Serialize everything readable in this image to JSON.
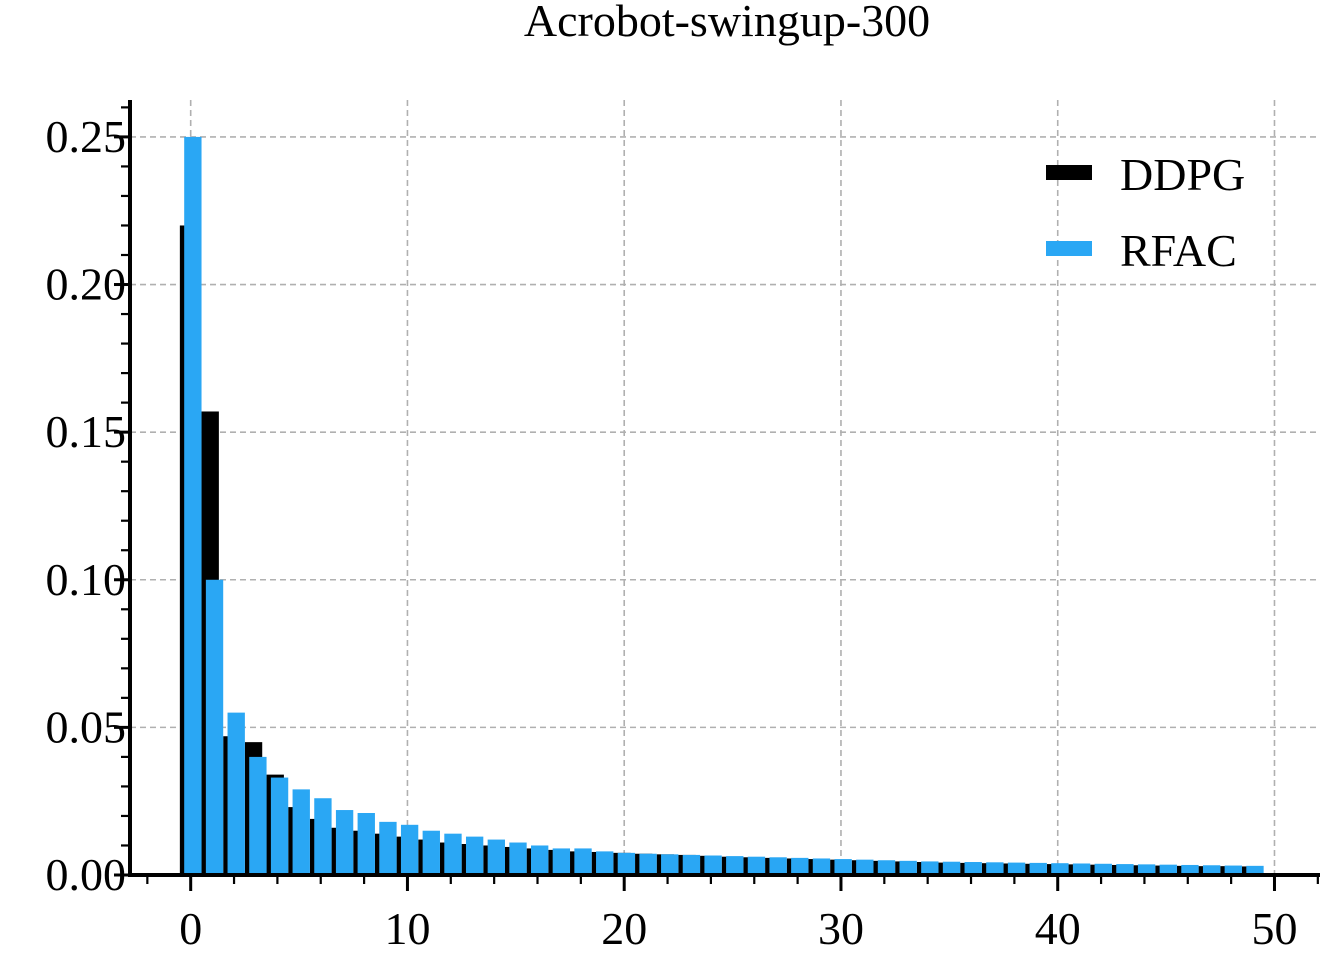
{
  "chart_data": {
    "type": "bar",
    "title": "Acrobot-swingup-300",
    "xlabel": "",
    "ylabel": "",
    "xlim": [
      -2.8,
      52.1
    ],
    "ylim": [
      0,
      0.2625
    ],
    "x_ticks": [
      "0",
      "10",
      "20",
      "30",
      "40",
      "50"
    ],
    "y_ticks": [
      "0.00",
      "0.05",
      "0.10",
      "0.15",
      "0.20",
      "0.25"
    ],
    "grid": true,
    "legend_position": "top-right",
    "x": [
      0,
      1,
      2,
      3,
      4,
      5,
      6,
      7,
      8,
      9,
      10,
      11,
      12,
      13,
      14,
      15,
      16,
      17,
      18,
      19,
      20,
      21,
      22,
      23,
      24,
      25,
      26,
      27,
      28,
      29,
      30,
      31,
      32,
      33,
      34,
      35,
      36,
      37,
      38,
      39,
      40,
      41,
      42,
      43,
      44,
      45,
      46,
      47,
      48,
      49
    ],
    "series": [
      {
        "name": "DDPG",
        "color": "#000000",
        "values": [
          0.22,
          0.157,
          0.047,
          0.045,
          0.034,
          0.023,
          0.019,
          0.016,
          0.015,
          0.014,
          0.013,
          0.012,
          0.011,
          0.0105,
          0.01,
          0.0095,
          0.009,
          0.0085,
          0.008,
          0.0078,
          0.0075,
          0.0072,
          0.007,
          0.0068,
          0.0065,
          0.0062,
          0.006,
          0.0058,
          0.0056,
          0.0054,
          0.0052,
          0.005,
          0.0048,
          0.0046,
          0.0044,
          0.0042,
          0.0041,
          0.004,
          0.0039,
          0.0038,
          0.0037,
          0.0036,
          0.0035,
          0.0034,
          0.0033,
          0.0032,
          0.0031,
          0.003,
          0.003,
          0.0029
        ]
      },
      {
        "name": "RFAC",
        "color": "#2aa7f4",
        "values": [
          0.25,
          0.1,
          0.055,
          0.04,
          0.033,
          0.029,
          0.026,
          0.022,
          0.021,
          0.018,
          0.017,
          0.015,
          0.014,
          0.013,
          0.012,
          0.011,
          0.01,
          0.009,
          0.009,
          0.008,
          0.0075,
          0.0072,
          0.007,
          0.0068,
          0.0066,
          0.0064,
          0.0062,
          0.006,
          0.0058,
          0.0056,
          0.0054,
          0.0052,
          0.005,
          0.0048,
          0.0046,
          0.0045,
          0.0044,
          0.0043,
          0.0042,
          0.0041,
          0.004,
          0.0039,
          0.0038,
          0.0037,
          0.0036,
          0.0035,
          0.0034,
          0.0033,
          0.0032,
          0.0031
        ]
      }
    ]
  }
}
